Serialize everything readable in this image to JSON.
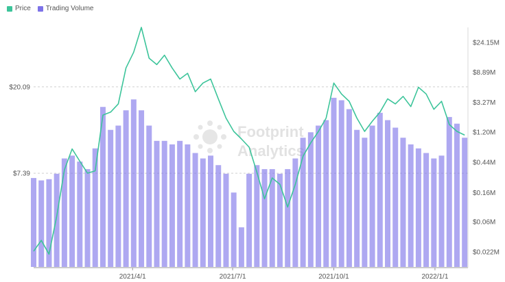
{
  "legend": {
    "price_label": "Price",
    "volume_label": "Trading Volume",
    "price_color": "#3cc49a",
    "volume_color": "#7d72e8"
  },
  "watermark": {
    "line1": "Footprint",
    "line2": "Analytics"
  },
  "chart_data": {
    "type": "bar+line",
    "x_ticks": [
      "2021/4/1",
      "2021/7/1",
      "2021/10/1",
      "2022/1/1"
    ],
    "x_range": [
      "2021-01-01",
      "2022-01-31"
    ],
    "left_axis": {
      "label": "",
      "ticks": [
        "$20.09",
        "$7.39"
      ],
      "scale": "log",
      "range": [
        2.5,
        40
      ]
    },
    "right_axis": {
      "label": "",
      "ticks": [
        "$24.15M",
        "$8.89M",
        "$3.27M",
        "$1.20M",
        "$0.44M",
        "$0.16M",
        "$0.06M",
        "$0.022M"
      ],
      "scale": "log",
      "range": [
        0.0133,
        40
      ]
    },
    "series": [
      {
        "name": "Price",
        "kind": "line",
        "axis": "left",
        "color": "#3cc49a",
        "x": [
          "2021-01-01",
          "2021-01-08",
          "2021-01-15",
          "2021-01-22",
          "2021-01-29",
          "2021-02-05",
          "2021-02-12",
          "2021-02-19",
          "2021-02-26",
          "2021-03-05",
          "2021-03-12",
          "2021-03-19",
          "2021-03-26",
          "2021-04-02",
          "2021-04-09",
          "2021-04-16",
          "2021-04-23",
          "2021-04-30",
          "2021-05-07",
          "2021-05-14",
          "2021-05-21",
          "2021-05-28",
          "2021-06-04",
          "2021-06-11",
          "2021-06-18",
          "2021-06-25",
          "2021-07-02",
          "2021-07-09",
          "2021-07-16",
          "2021-07-23",
          "2021-07-30",
          "2021-08-06",
          "2021-08-13",
          "2021-08-20",
          "2021-08-27",
          "2021-09-03",
          "2021-09-10",
          "2021-09-17",
          "2021-09-24",
          "2021-10-01",
          "2021-10-08",
          "2021-10-15",
          "2021-10-22",
          "2021-10-29",
          "2021-11-05",
          "2021-11-12",
          "2021-11-19",
          "2021-11-26",
          "2021-12-03",
          "2021-12-10",
          "2021-12-17",
          "2021-12-24",
          "2021-12-31",
          "2022-01-07",
          "2022-01-14",
          "2022-01-21",
          "2022-01-28"
        ],
        "y": [
          3.0,
          3.4,
          2.9,
          4.5,
          7.7,
          9.8,
          8.5,
          7.4,
          7.6,
          14.5,
          15.0,
          16.5,
          25.0,
          30.0,
          40.0,
          28.0,
          26.0,
          29.0,
          25.0,
          22.0,
          23.5,
          19.0,
          21.0,
          22.0,
          17.5,
          14.0,
          12.0,
          11.0,
          10.0,
          7.5,
          5.5,
          7.0,
          6.5,
          5.0,
          6.5,
          9.0,
          10.5,
          12.0,
          14.0,
          21.0,
          18.5,
          17.0,
          14.0,
          12.0,
          13.5,
          15.0,
          17.5,
          16.5,
          18.0,
          16.0,
          20.0,
          18.5,
          15.5,
          17.0,
          13.0,
          12.0,
          11.5
        ]
      },
      {
        "name": "Trading Volume",
        "kind": "bar",
        "axis": "right",
        "color": "#7d72e8",
        "x": [
          "2021-01-01",
          "2021-01-08",
          "2021-01-15",
          "2021-01-22",
          "2021-01-29",
          "2021-02-05",
          "2021-02-12",
          "2021-02-19",
          "2021-02-26",
          "2021-03-05",
          "2021-03-12",
          "2021-03-19",
          "2021-03-26",
          "2021-04-02",
          "2021-04-09",
          "2021-04-16",
          "2021-04-23",
          "2021-04-30",
          "2021-05-07",
          "2021-05-14",
          "2021-05-21",
          "2021-05-28",
          "2021-06-04",
          "2021-06-11",
          "2021-06-18",
          "2021-06-25",
          "2021-07-02",
          "2021-07-09",
          "2021-07-16",
          "2021-07-23",
          "2021-07-30",
          "2021-08-06",
          "2021-08-13",
          "2021-08-20",
          "2021-08-27",
          "2021-09-03",
          "2021-09-10",
          "2021-09-17",
          "2021-09-24",
          "2021-10-01",
          "2021-10-08",
          "2021-10-15",
          "2021-10-22",
          "2021-10-29",
          "2021-11-05",
          "2021-11-12",
          "2021-11-19",
          "2021-11-26",
          "2021-12-03",
          "2021-12-10",
          "2021-12-17",
          "2021-12-24",
          "2021-12-31",
          "2022-01-07",
          "2022-01-14",
          "2022-01-21",
          "2022-01-28"
        ],
        "y": [
          0.26,
          0.24,
          0.25,
          0.3,
          0.5,
          0.55,
          0.45,
          0.35,
          0.7,
          2.8,
          1.3,
          1.5,
          2.5,
          3.6,
          2.5,
          1.5,
          0.9,
          0.9,
          0.8,
          0.9,
          0.8,
          0.6,
          0.5,
          0.55,
          0.4,
          0.3,
          0.16,
          0.05,
          0.3,
          0.4,
          0.35,
          0.35,
          0.3,
          0.35,
          0.5,
          1.0,
          1.2,
          1.5,
          1.8,
          3.8,
          3.5,
          2.6,
          1.3,
          1.0,
          1.5,
          2.3,
          1.8,
          1.4,
          1.0,
          0.8,
          0.7,
          0.6,
          0.5,
          0.55,
          2.0,
          1.6,
          1.0
        ]
      }
    ],
    "grid": "horizontal dashed at left-axis ticks",
    "legend_position": "top-left"
  }
}
